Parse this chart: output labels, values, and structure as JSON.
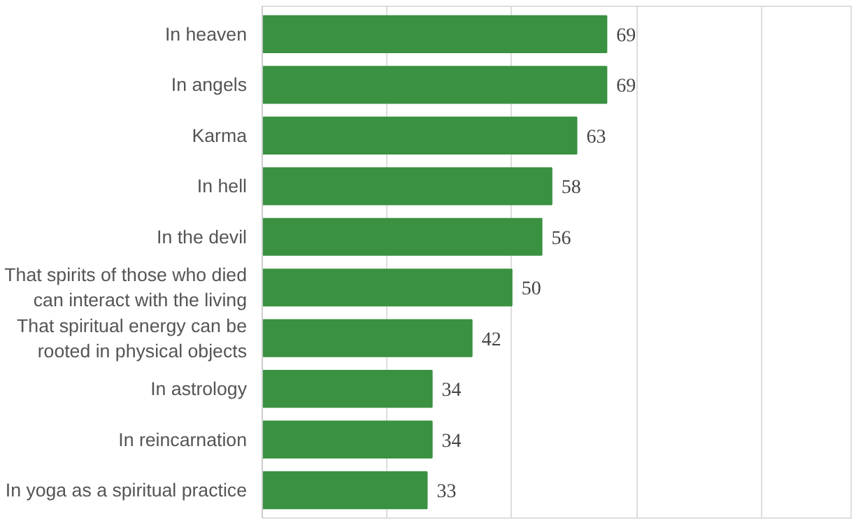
{
  "chart_data": {
    "type": "bar",
    "orientation": "horizontal",
    "categories": [
      "In heaven",
      "In angels",
      "Karma",
      "In hell",
      "In the devil",
      "That spirits of those who died\ncan interact with the living",
      "That spiritual energy can be\nrooted in physical objects",
      "In astrology",
      "In reincarnation",
      "In yoga as a spiritual practice"
    ],
    "values": [
      69,
      69,
      63,
      58,
      56,
      50,
      42,
      34,
      34,
      33
    ],
    "color": "#3a9142",
    "xlim": [
      0,
      118
    ],
    "xticks": [
      {
        "value": 0,
        "label": null
      },
      {
        "value": 25,
        "label": null
      },
      {
        "value": 50,
        "label": null
      },
      {
        "value": 75,
        "label": null
      },
      {
        "value": 100,
        "label": null
      }
    ],
    "grid": "x",
    "tick_labels": "y",
    "data_labels": true
  }
}
